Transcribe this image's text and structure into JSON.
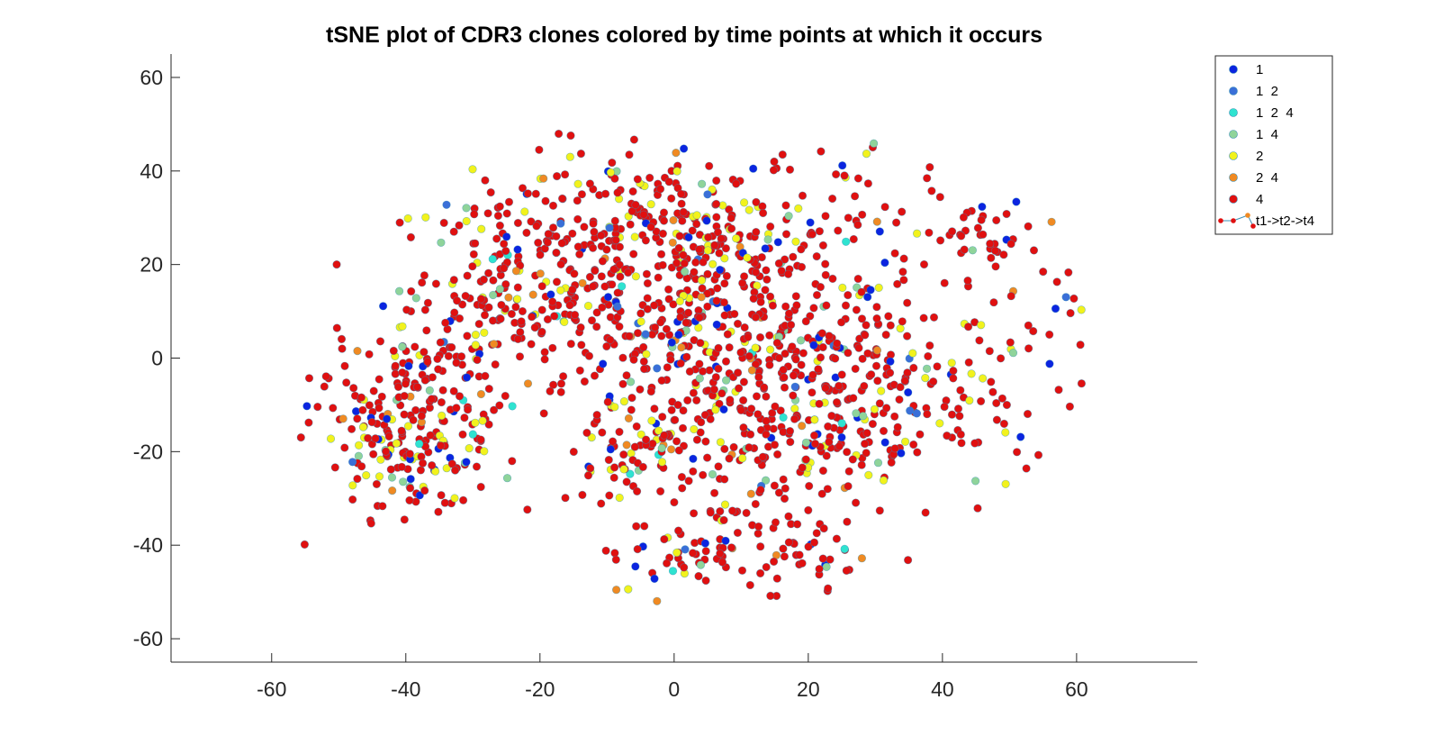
{
  "chart_data": {
    "type": "scatter",
    "title": "tSNE plot of CDR3 clones colored by time points at which it occurs",
    "xlabel": "",
    "ylabel": "",
    "xlim": [
      -75,
      78
    ],
    "ylim": [
      -65,
      65
    ],
    "xticks": [
      -60,
      -40,
      -20,
      0,
      20,
      40,
      60
    ],
    "yticks": [
      60,
      40,
      20,
      0,
      -20,
      -40,
      -60
    ],
    "grid": false,
    "legend_position": "top-right (outside axes)",
    "series": [
      {
        "name": "1",
        "color": "#0b24e0"
      },
      {
        "name": "1  2",
        "color": "#3a6fd8"
      },
      {
        "name": "1  2  4",
        "color": "#2fe3d0"
      },
      {
        "name": "1  4",
        "color": "#8fd49a"
      },
      {
        "name": "2",
        "color": "#f2f21c"
      },
      {
        "name": "2  4",
        "color": "#f08a22"
      },
      {
        "name": "4",
        "color": "#e01010"
      }
    ],
    "legend_extra": {
      "name": "t1->t2->t4"
    },
    "marker_edge_color": "#3b8fb5"
  }
}
